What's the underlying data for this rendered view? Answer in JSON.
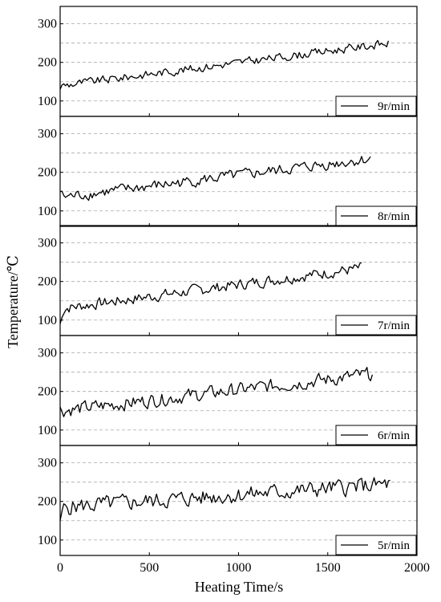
{
  "chart_data": {
    "type": "line",
    "layout": "stacked-panels",
    "xlabel": "Heating Time/s",
    "ylabel": "Temperature/℃",
    "xlim": [
      0,
      2000
    ],
    "xticks": [
      0,
      500,
      1000,
      1500,
      2000
    ],
    "ylim": [
      60,
      345
    ],
    "yticks": [
      100,
      200,
      300
    ],
    "grid": "horizontal-dashed",
    "legend_position": "bottom-right",
    "line_color": "#000000",
    "grid_color": "#a9a9a9",
    "panels": [
      {
        "series_name": "9r/min",
        "end": 1840,
        "start": 130,
        "trend_start": 140,
        "trend_end": 250,
        "noise": 15,
        "seed": 9
      },
      {
        "series_name": "8r/min",
        "end": 1740,
        "start": 150,
        "trend_start": 135,
        "trend_end": 235,
        "noise": 20,
        "seed": 8
      },
      {
        "series_name": "7r/min",
        "end": 1690,
        "start": 90,
        "trend_start": 130,
        "trend_end": 235,
        "noise": 20,
        "seed": 7
      },
      {
        "series_name": "6r/min",
        "end": 1750,
        "start": 160,
        "trend_start": 150,
        "trend_end": 245,
        "noise": 25,
        "seed": 6
      },
      {
        "series_name": "5r/min",
        "end": 1850,
        "start": 150,
        "trend_start": 185,
        "trend_end": 245,
        "noise": 30,
        "seed": 5
      }
    ]
  }
}
